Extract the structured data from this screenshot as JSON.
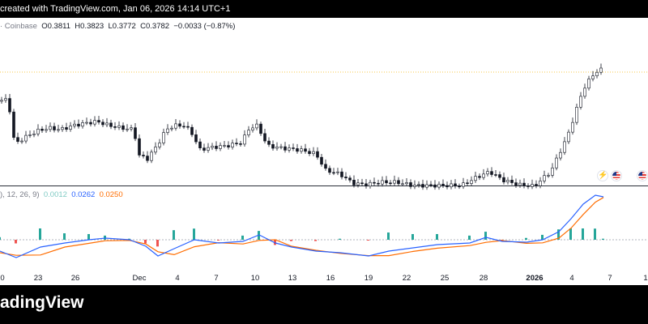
{
  "header": {
    "created_text": "created with TradingView.com, Jan 06, 2026 14:14 UTC+1"
  },
  "legend": {
    "exchange": "· Coinbase",
    "open_label": "O",
    "open": "0.3811",
    "high_label": "H",
    "high": "0.3823",
    "low_label": "L",
    "low": "0.3772",
    "close_label": "C",
    "close": "0.3782",
    "change": "−0.0033 (−0.87%)"
  },
  "macd_legend": {
    "params": "), 12, 26, 9)",
    "histogram": "0.0012",
    "macd": "0.0262",
    "signal": "0.0250"
  },
  "x_axis": [
    {
      "label": "0",
      "bold": false
    },
    {
      "label": "23",
      "bold": false
    },
    {
      "label": "26",
      "bold": false
    },
    {
      "label": "Dec",
      "bold": false
    },
    {
      "label": "4",
      "bold": false
    },
    {
      "label": "7",
      "bold": false
    },
    {
      "label": "10",
      "bold": false
    },
    {
      "label": "13",
      "bold": false
    },
    {
      "label": "16",
      "bold": false
    },
    {
      "label": "19",
      "bold": false
    },
    {
      "label": "22",
      "bold": false
    },
    {
      "label": "25",
      "bold": false
    },
    {
      "label": "28",
      "bold": false
    },
    {
      "label": "2026",
      "bold": true
    },
    {
      "label": "4",
      "bold": false
    },
    {
      "label": "7",
      "bold": false
    },
    {
      "label": "1",
      "bold": false
    }
  ],
  "events": [
    {
      "kind": "bolt-icon",
      "glyph": "⚡"
    },
    {
      "kind": "us-flag-icon",
      "glyph": ""
    },
    {
      "kind": "us-flag-icon",
      "glyph": ""
    }
  ],
  "footer": {
    "brand": "adingView"
  },
  "colors": {
    "up": "#089981",
    "down": "#f23645",
    "macd": "#2962ff",
    "signal": "#ff6d00",
    "hist_up": "#26a69a",
    "hist_down": "#ef5350"
  }
}
